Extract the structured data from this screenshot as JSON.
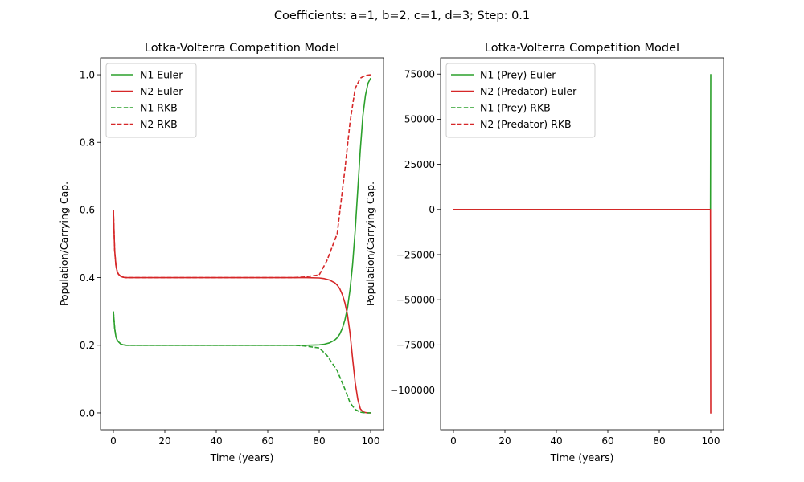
{
  "figure": {
    "suptitle": "Coefficients: a=1, b=2, c=1, d=3; Step: 0.1"
  },
  "colors": {
    "n1": "#2ca02c",
    "n2": "#d62728"
  },
  "chart_data": [
    {
      "type": "line",
      "title": "Lotka-Volterra Competition Model",
      "xlabel": "Time (years)",
      "ylabel": "Population/Carrying Cap.",
      "xlim": [
        -5,
        105
      ],
      "ylim": [
        -0.05,
        1.05
      ],
      "xticks": [
        0,
        20,
        40,
        60,
        80,
        100
      ],
      "xtick_labels": [
        "0",
        "20",
        "40",
        "60",
        "80",
        "100"
      ],
      "yticks": [
        0.0,
        0.2,
        0.4,
        0.6,
        0.8,
        1.0
      ],
      "ytick_labels": [
        "0.0",
        "0.2",
        "0.4",
        "0.6",
        "0.8",
        "1.0"
      ],
      "grid": false,
      "legend_position": "upper-left",
      "series": [
        {
          "name": "N1 Euler",
          "color": "#2ca02c",
          "style": "solid",
          "x": [
            0,
            0.5,
            1,
            1.5,
            2,
            3,
            4,
            5,
            7,
            10,
            20,
            40,
            60,
            70,
            75,
            80,
            82,
            84,
            86,
            87,
            88,
            89,
            90,
            91,
            92,
            93,
            94,
            95,
            96,
            97,
            98,
            99,
            100
          ],
          "y": [
            0.3,
            0.25,
            0.225,
            0.215,
            0.21,
            0.203,
            0.201,
            0.2,
            0.2,
            0.2,
            0.2,
            0.2,
            0.2,
            0.2,
            0.2,
            0.201,
            0.203,
            0.207,
            0.215,
            0.222,
            0.233,
            0.25,
            0.275,
            0.31,
            0.365,
            0.44,
            0.54,
            0.66,
            0.78,
            0.88,
            0.94,
            0.975,
            0.99
          ]
        },
        {
          "name": "N2 Euler",
          "color": "#d62728",
          "style": "solid",
          "x": [
            0,
            0.5,
            1,
            1.5,
            2,
            3,
            4,
            5,
            7,
            10,
            20,
            40,
            60,
            70,
            75,
            80,
            82,
            84,
            86,
            87,
            88,
            89,
            90,
            91,
            92,
            93,
            94,
            95,
            96,
            97,
            98,
            99,
            100
          ],
          "y": [
            0.6,
            0.48,
            0.435,
            0.418,
            0.41,
            0.403,
            0.401,
            0.4,
            0.4,
            0.4,
            0.4,
            0.4,
            0.4,
            0.4,
            0.4,
            0.399,
            0.397,
            0.393,
            0.385,
            0.378,
            0.367,
            0.35,
            0.325,
            0.29,
            0.235,
            0.16,
            0.09,
            0.04,
            0.012,
            0.003,
            0.001,
            0.0,
            0.0
          ]
        },
        {
          "name": "N1 RKB",
          "color": "#2ca02c",
          "style": "dashed",
          "x": [
            0,
            0.5,
            1,
            1.5,
            2,
            3,
            4,
            5,
            7,
            10,
            20,
            40,
            60,
            70,
            74,
            77,
            80,
            83,
            87,
            90,
            92,
            94,
            96,
            98,
            100
          ],
          "y": [
            0.3,
            0.25,
            0.225,
            0.215,
            0.21,
            0.203,
            0.201,
            0.2,
            0.2,
            0.2,
            0.2,
            0.2,
            0.2,
            0.2,
            0.198,
            0.195,
            0.192,
            0.17,
            0.125,
            0.07,
            0.03,
            0.01,
            0.002,
            0.0,
            0.0
          ]
        },
        {
          "name": "N2 RKB",
          "color": "#d62728",
          "style": "dashed",
          "x": [
            0,
            0.5,
            1,
            1.5,
            2,
            3,
            4,
            5,
            7,
            10,
            20,
            40,
            60,
            70,
            74,
            77,
            80,
            83,
            87,
            90,
            92,
            94,
            96,
            98,
            100
          ],
          "y": [
            0.6,
            0.48,
            0.435,
            0.418,
            0.41,
            0.403,
            0.401,
            0.4,
            0.4,
            0.4,
            0.4,
            0.4,
            0.4,
            0.4,
            0.402,
            0.405,
            0.408,
            0.45,
            0.53,
            0.72,
            0.86,
            0.96,
            0.99,
            0.998,
            1.0
          ]
        }
      ]
    },
    {
      "type": "line",
      "title": "Lotka-Volterra Competition Model",
      "xlabel": "Time (years)",
      "ylabel": "Population/Carrying Cap.",
      "xlim": [
        -5,
        105
      ],
      "ylim": [
        -122000,
        84000
      ],
      "xticks": [
        0,
        20,
        40,
        60,
        80,
        100
      ],
      "xtick_labels": [
        "0",
        "20",
        "40",
        "60",
        "80",
        "100"
      ],
      "yticks": [
        75000,
        50000,
        25000,
        0,
        -25000,
        -50000,
        -75000,
        -100000
      ],
      "ytick_labels": [
        "75000",
        "50000",
        "25000",
        "0",
        "−25000",
        "−50000",
        "−75000",
        "−100000"
      ],
      "grid": false,
      "legend_position": "upper-left",
      "series": [
        {
          "name": "N1 (Prey) Euler",
          "color": "#2ca02c",
          "style": "solid",
          "x": [
            0,
            99.9,
            100
          ],
          "y": [
            0,
            0,
            75000
          ]
        },
        {
          "name": "N2 (Predator) Euler",
          "color": "#d62728",
          "style": "solid",
          "x": [
            0,
            99.9,
            100
          ],
          "y": [
            0,
            0,
            -113000
          ]
        },
        {
          "name": "N1 (Prey) RKB",
          "color": "#2ca02c",
          "style": "dashed",
          "x": [
            0,
            99.9
          ],
          "y": [
            0,
            0
          ]
        },
        {
          "name": "N2 (Predator) RKB",
          "color": "#d62728",
          "style": "dashed",
          "x": [
            0,
            99.9
          ],
          "y": [
            0,
            0
          ]
        }
      ]
    }
  ]
}
